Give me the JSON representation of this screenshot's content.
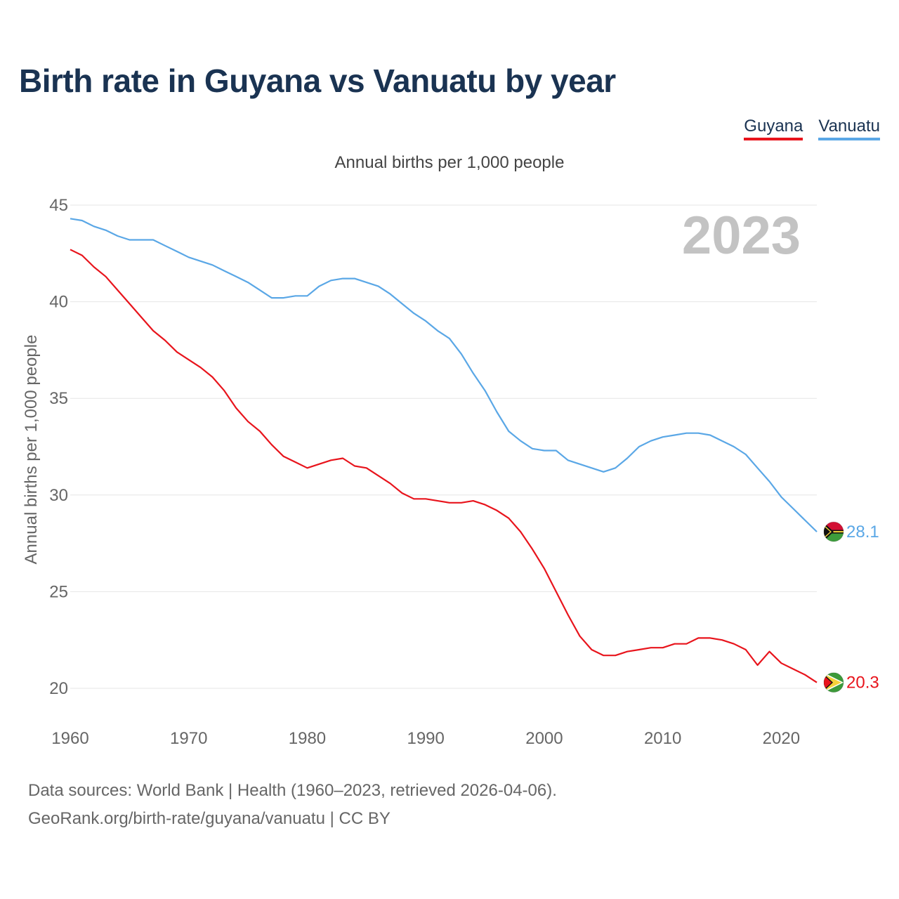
{
  "title": "Birth rate in Guyana vs Vanuatu by year",
  "subtitle": "Annual births per 1,000 people",
  "legend": [
    {
      "name": "Guyana",
      "color": "#e8141c"
    },
    {
      "name": "Vanuatu",
      "color": "#5aa7e6"
    }
  ],
  "source": {
    "line1": "Data sources: World Bank | Health (1960–2023, retrieved 2026-04-06).",
    "line2": "GeoRank.org/birth-rate/guyana/vanuatu | CC BY"
  },
  "chart_data": {
    "type": "line",
    "title": "Birth rate in Guyana vs Vanuatu by year",
    "ylabel": "Annual births per 1,000 people",
    "xlabel": "",
    "year_watermark": "2023",
    "xlim": [
      1960,
      2023
    ],
    "ylim": [
      18.5,
      45
    ],
    "xticks": [
      1960,
      1970,
      1980,
      1990,
      2000,
      2010,
      2020
    ],
    "yticks": [
      20,
      25,
      30,
      35,
      40,
      45
    ],
    "grid": true,
    "x": [
      1960,
      1961,
      1962,
      1963,
      1964,
      1965,
      1966,
      1967,
      1968,
      1969,
      1970,
      1971,
      1972,
      1973,
      1974,
      1975,
      1976,
      1977,
      1978,
      1979,
      1980,
      1981,
      1982,
      1983,
      1984,
      1985,
      1986,
      1987,
      1988,
      1989,
      1990,
      1991,
      1992,
      1993,
      1994,
      1995,
      1996,
      1997,
      1998,
      1999,
      2000,
      2001,
      2002,
      2003,
      2004,
      2005,
      2006,
      2007,
      2008,
      2009,
      2010,
      2011,
      2012,
      2013,
      2014,
      2015,
      2016,
      2017,
      2018,
      2019,
      2020,
      2021,
      2022,
      2023
    ],
    "series": [
      {
        "name": "Guyana",
        "color": "#e8141c",
        "last_label": "20.3",
        "values": [
          42.7,
          42.4,
          41.8,
          41.3,
          40.6,
          39.9,
          39.2,
          38.5,
          38.0,
          37.4,
          37.0,
          36.6,
          36.1,
          35.4,
          34.5,
          33.8,
          33.3,
          32.6,
          32.0,
          31.7,
          31.4,
          31.6,
          31.8,
          31.9,
          31.5,
          31.4,
          31.0,
          30.6,
          30.1,
          29.8,
          29.8,
          29.7,
          29.6,
          29.6,
          29.7,
          29.5,
          29.2,
          28.8,
          28.1,
          27.2,
          26.2,
          25.0,
          23.8,
          22.7,
          22.0,
          21.7,
          21.7,
          21.9,
          22.0,
          22.1,
          22.1,
          22.3,
          22.3,
          22.6,
          22.6,
          22.5,
          22.3,
          22.0,
          21.2,
          21.9,
          21.3,
          21.0,
          20.7,
          20.3
        ]
      },
      {
        "name": "Vanuatu",
        "color": "#5aa7e6",
        "last_label": "28.1",
        "values": [
          44.3,
          44.2,
          43.9,
          43.7,
          43.4,
          43.2,
          43.2,
          43.2,
          42.9,
          42.6,
          42.3,
          42.1,
          41.9,
          41.6,
          41.3,
          41.0,
          40.6,
          40.2,
          40.2,
          40.3,
          40.3,
          40.8,
          41.1,
          41.2,
          41.2,
          41.0,
          40.8,
          40.4,
          39.9,
          39.4,
          39.0,
          38.5,
          38.1,
          37.3,
          36.3,
          35.4,
          34.3,
          33.3,
          32.8,
          32.4,
          32.3,
          32.3,
          31.8,
          31.6,
          31.4,
          31.2,
          31.4,
          31.9,
          32.5,
          32.8,
          33.0,
          33.1,
          33.2,
          33.2,
          33.1,
          32.8,
          32.5,
          32.1,
          31.4,
          30.7,
          29.9,
          29.3,
          28.7,
          28.1
        ]
      }
    ]
  }
}
